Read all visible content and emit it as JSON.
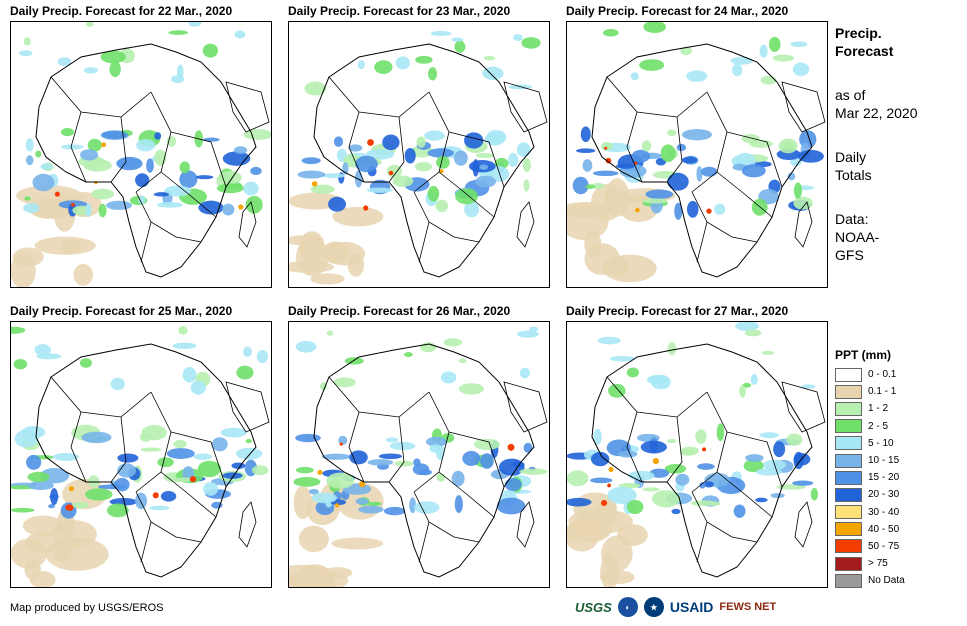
{
  "panels": [
    {
      "title": "Daily Precip. Forecast for 22 Mar., 2020"
    },
    {
      "title": "Daily Precip. Forecast for 23 Mar., 2020"
    },
    {
      "title": "Daily Precip. Forecast for 24 Mar., 2020"
    },
    {
      "title": "Daily Precip. Forecast for 25 Mar., 2020"
    },
    {
      "title": "Daily Precip. Forecast for 26 Mar., 2020"
    },
    {
      "title": "Daily Precip. Forecast for 27 Mar., 2020"
    }
  ],
  "side": {
    "heading_line1": "Precip.",
    "heading_line2": "Forecast",
    "asof_line1": "as of",
    "asof_line2": "Mar 22, 2020",
    "totals_line1": "Daily",
    "totals_line2": "Totals",
    "source_line1": "Data:",
    "source_line2": "NOAA-",
    "source_line3": "GFS"
  },
  "legend": {
    "title": "PPT (mm)",
    "items": [
      {
        "label": "0 - 0.1",
        "color": "#ffffff"
      },
      {
        "label": "0.1 - 1",
        "color": "#e8d5b0"
      },
      {
        "label": "1 - 2",
        "color": "#b7f0b0"
      },
      {
        "label": "2 - 5",
        "color": "#6fe06a"
      },
      {
        "label": "5 - 10",
        "color": "#a8e8f5"
      },
      {
        "label": "10 - 15",
        "color": "#78b4ea"
      },
      {
        "label": "15 - 20",
        "color": "#4f91e6"
      },
      {
        "label": "20 - 30",
        "color": "#2063d8"
      },
      {
        "label": "30 - 40",
        "color": "#ffe37a"
      },
      {
        "label": "40 - 50",
        "color": "#f5a500"
      },
      {
        "label": "50 - 75",
        "color": "#f23c00"
      },
      {
        "label": "> 75",
        "color": "#a31b1b"
      },
      {
        "label": "No Data",
        "color": "#9a9a9a"
      }
    ]
  },
  "credit": "Map produced by USGS/EROS",
  "logos": {
    "usgs": "USGS",
    "usaid": "USAID",
    "fews": "FEWS NET"
  },
  "icons": [
    "usgs-logo-icon",
    "noaa-logo-icon",
    "usaid-seal-icon",
    "fews-net-logo-icon"
  ]
}
